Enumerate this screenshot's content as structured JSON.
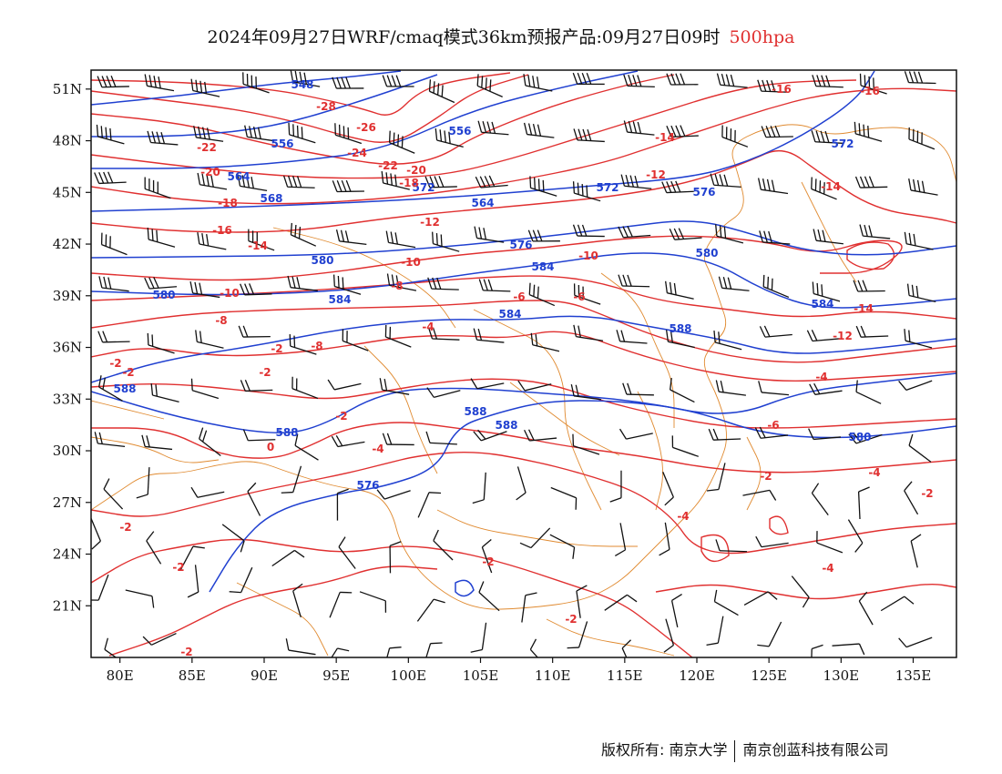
{
  "title": {
    "text": "2024年09月27日WRF/cmaq模式36km预报产品:09月27日09时",
    "level": "500hpa",
    "level_color": "#e03030"
  },
  "axes": {
    "x_ticks": [
      "80E",
      "85E",
      "90E",
      "95E",
      "100E",
      "105E",
      "110E",
      "115E",
      "120E",
      "125E",
      "130E",
      "135E"
    ],
    "y_ticks": [
      "51N",
      "48N",
      "45N",
      "42N",
      "39N",
      "36N",
      "33N",
      "30N",
      "27N",
      "24N",
      "21N"
    ]
  },
  "colors": {
    "temperature_contour": "#e03030",
    "height_contour": "#2040d0",
    "boundary": "#e08a30",
    "wind_barb": "#111111"
  },
  "height_contour_labels": [
    "548",
    "556",
    "556",
    "564",
    "564",
    "568",
    "572",
    "572",
    "572",
    "576",
    "576",
    "580",
    "580",
    "580",
    "584",
    "584",
    "584",
    "584",
    "588",
    "588",
    "588",
    "588",
    "588",
    "576",
    "580"
  ],
  "temperature_contour_labels": [
    "-28",
    "-26",
    "-24",
    "-22",
    "-22",
    "-20",
    "-20",
    "-18",
    "-18",
    "-16",
    "-16",
    "-16",
    "-14",
    "-14",
    "-14",
    "-14",
    "-12",
    "-12",
    "-12",
    "-10",
    "-10",
    "-10",
    "-8",
    "-8",
    "-8",
    "-6",
    "-6",
    "-6",
    "-4",
    "-4",
    "-4",
    "-4",
    "-4",
    "-4",
    "-2",
    "-2",
    "-2",
    "-2",
    "-2",
    "-2",
    "0",
    "-2",
    "-2",
    "-2",
    "-2",
    "-2",
    "-2"
  ],
  "footer": {
    "left": "版权所有: 南京大学",
    "right": "南京创蓝科技有限公司"
  }
}
